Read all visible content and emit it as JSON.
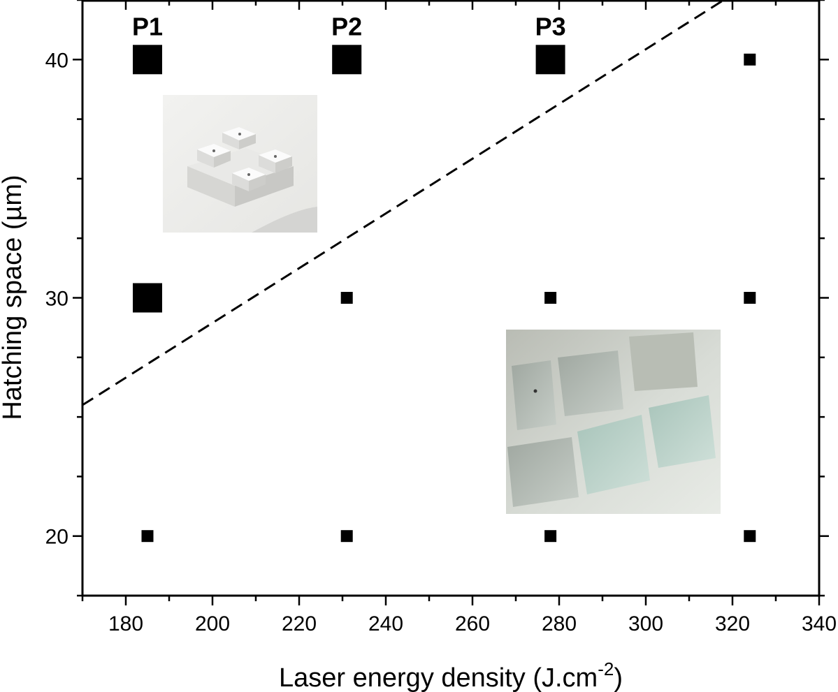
{
  "chart_data": {
    "type": "scatter",
    "title": "",
    "xlabel": "Laser energy density (J.cm",
    "xlabel_sup": "-2",
    "xlabel_close": ")",
    "ylabel": "Hatching space (µm)",
    "xlim": [
      170,
      340
    ],
    "ylim": [
      17.5,
      42.5
    ],
    "x_ticks": [
      180,
      200,
      220,
      240,
      260,
      280,
      300,
      320,
      340
    ],
    "y_ticks": [
      20,
      30,
      40
    ],
    "grid": false,
    "points": [
      {
        "x": 185,
        "y": 40,
        "size": "large",
        "label": "P1"
      },
      {
        "x": 231,
        "y": 40,
        "size": "large",
        "label": "P2"
      },
      {
        "x": 278,
        "y": 40,
        "size": "large",
        "label": "P3"
      },
      {
        "x": 324,
        "y": 40,
        "size": "small"
      },
      {
        "x": 185,
        "y": 30,
        "size": "large"
      },
      {
        "x": 231,
        "y": 30,
        "size": "small"
      },
      {
        "x": 278,
        "y": 30,
        "size": "small"
      },
      {
        "x": 324,
        "y": 30,
        "size": "small"
      },
      {
        "x": 185,
        "y": 20,
        "size": "small"
      },
      {
        "x": 231,
        "y": 20,
        "size": "small"
      },
      {
        "x": 278,
        "y": 20,
        "size": "small"
      },
      {
        "x": 324,
        "y": 20,
        "size": "small"
      }
    ],
    "boundary_line": {
      "style": "dashed",
      "from": [
        170,
        25.5
      ],
      "to": [
        318,
        42.5
      ]
    },
    "insets": [
      {
        "name": "white-sample-photo-inset"
      },
      {
        "name": "glass-squares-photo-inset"
      }
    ]
  }
}
